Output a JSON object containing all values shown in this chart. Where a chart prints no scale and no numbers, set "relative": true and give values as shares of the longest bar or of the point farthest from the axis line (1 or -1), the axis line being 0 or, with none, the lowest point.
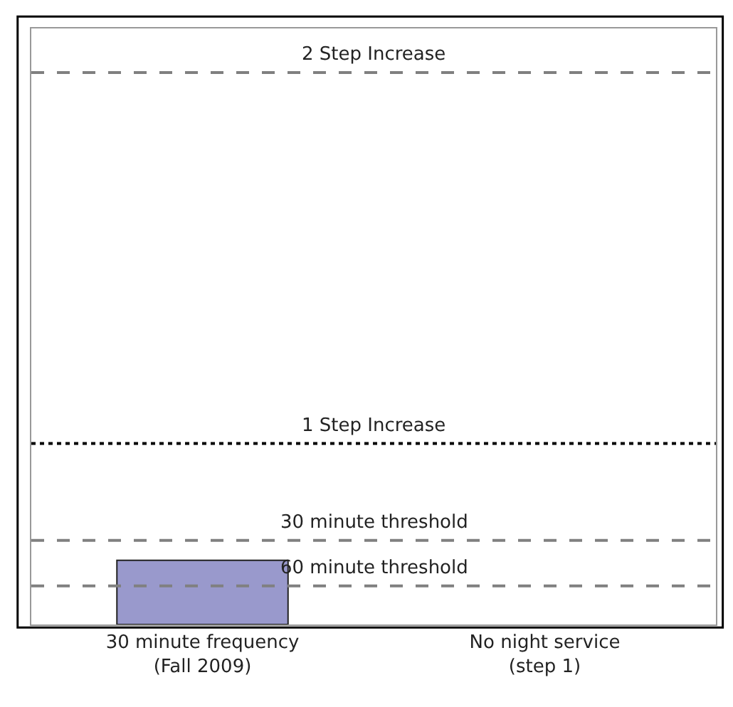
{
  "chart_data": {
    "type": "bar",
    "relative": true,
    "categories": [
      "30 minute frequency (Fall 2009)",
      "No night service (step 1)"
    ],
    "series": [
      {
        "color": "#9999cc",
        "values": [
          1,
          0
        ]
      }
    ],
    "ref_lines": [
      {
        "axis": "y",
        "value": 8.6,
        "label": "2 Step Increase",
        "color": "#808080",
        "line_style": "dashed"
      },
      {
        "axis": "y",
        "value": 2.82,
        "label": "1 Step Increase",
        "color": "#000000",
        "line_style": "dotted"
      },
      {
        "axis": "y",
        "value": 1.31,
        "label": "30 minute threshold",
        "color": "#808080",
        "line_style": "dashed"
      },
      {
        "axis": "y",
        "value": 0.6,
        "label": "60 minute threshold",
        "color": "#808080",
        "line_style": "dashed"
      }
    ]
  }
}
